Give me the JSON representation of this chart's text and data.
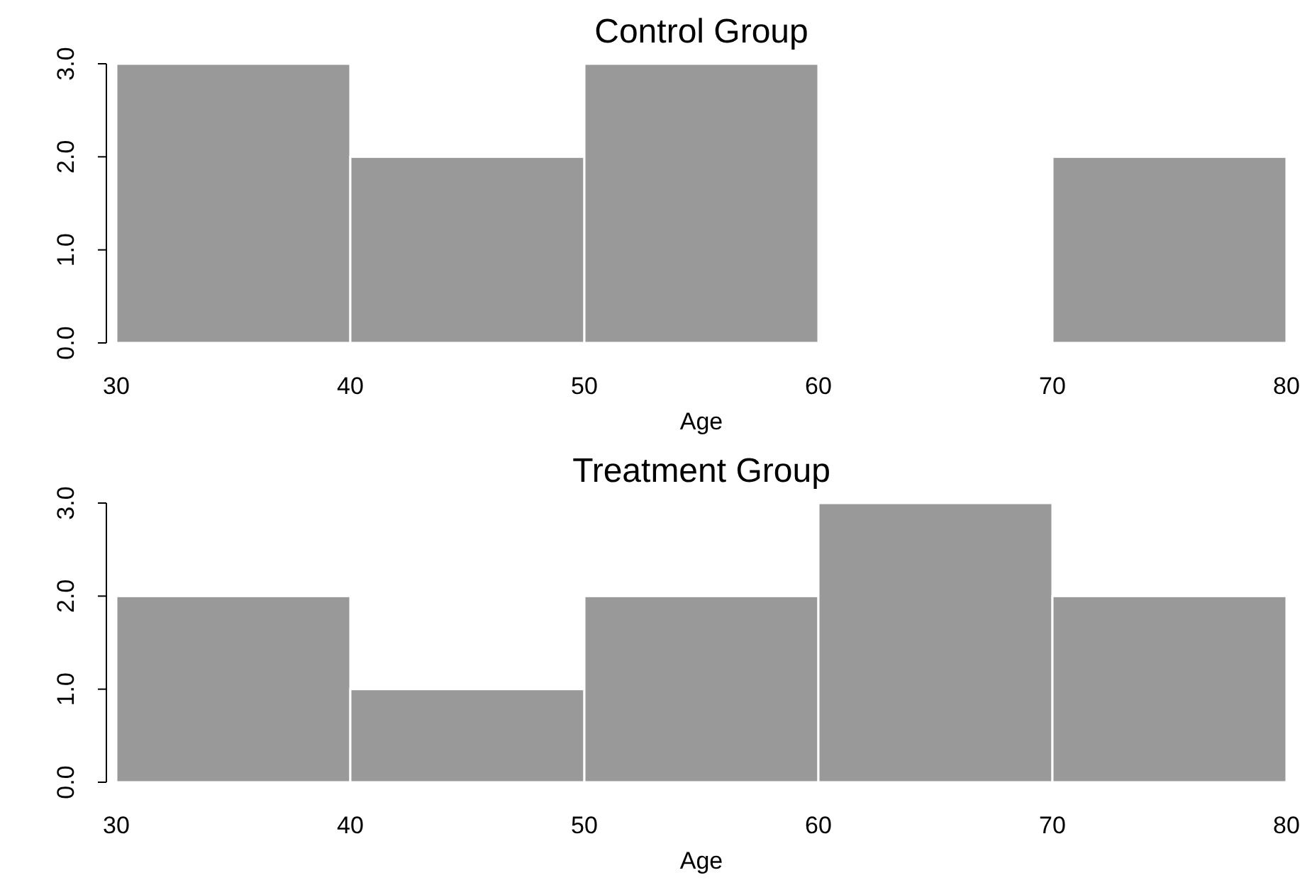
{
  "chart_data": [
    {
      "type": "histogram",
      "title": "Control Group",
      "xlabel": "Age",
      "bins": [
        30,
        40,
        50,
        60,
        70,
        80
      ],
      "values": [
        3,
        2,
        3,
        0,
        2
      ],
      "color": "#999999",
      "xlim": [
        30,
        80
      ],
      "xticks": [
        30,
        40,
        50,
        60,
        70,
        80
      ],
      "ylim": [
        0,
        3
      ],
      "yticks": [
        {
          "value": 0,
          "label": "0.0"
        },
        {
          "value": 1,
          "label": "1.0"
        },
        {
          "value": 2,
          "label": "2.0"
        },
        {
          "value": 3,
          "label": "3.0"
        }
      ],
      "grid": false
    },
    {
      "type": "histogram",
      "title": "Treatment Group",
      "xlabel": "Age",
      "bins": [
        30,
        40,
        50,
        60,
        70,
        80
      ],
      "values": [
        2,
        1,
        2,
        3,
        2
      ],
      "color": "#999999",
      "xlim": [
        30,
        80
      ],
      "xticks": [
        30,
        40,
        50,
        60,
        70,
        80
      ],
      "ylim": [
        0,
        3
      ],
      "yticks": [
        {
          "value": 0,
          "label": "0.0"
        },
        {
          "value": 1,
          "label": "1.0"
        },
        {
          "value": 2,
          "label": "2.0"
        },
        {
          "value": 3,
          "label": "3.0"
        }
      ],
      "grid": false
    }
  ]
}
